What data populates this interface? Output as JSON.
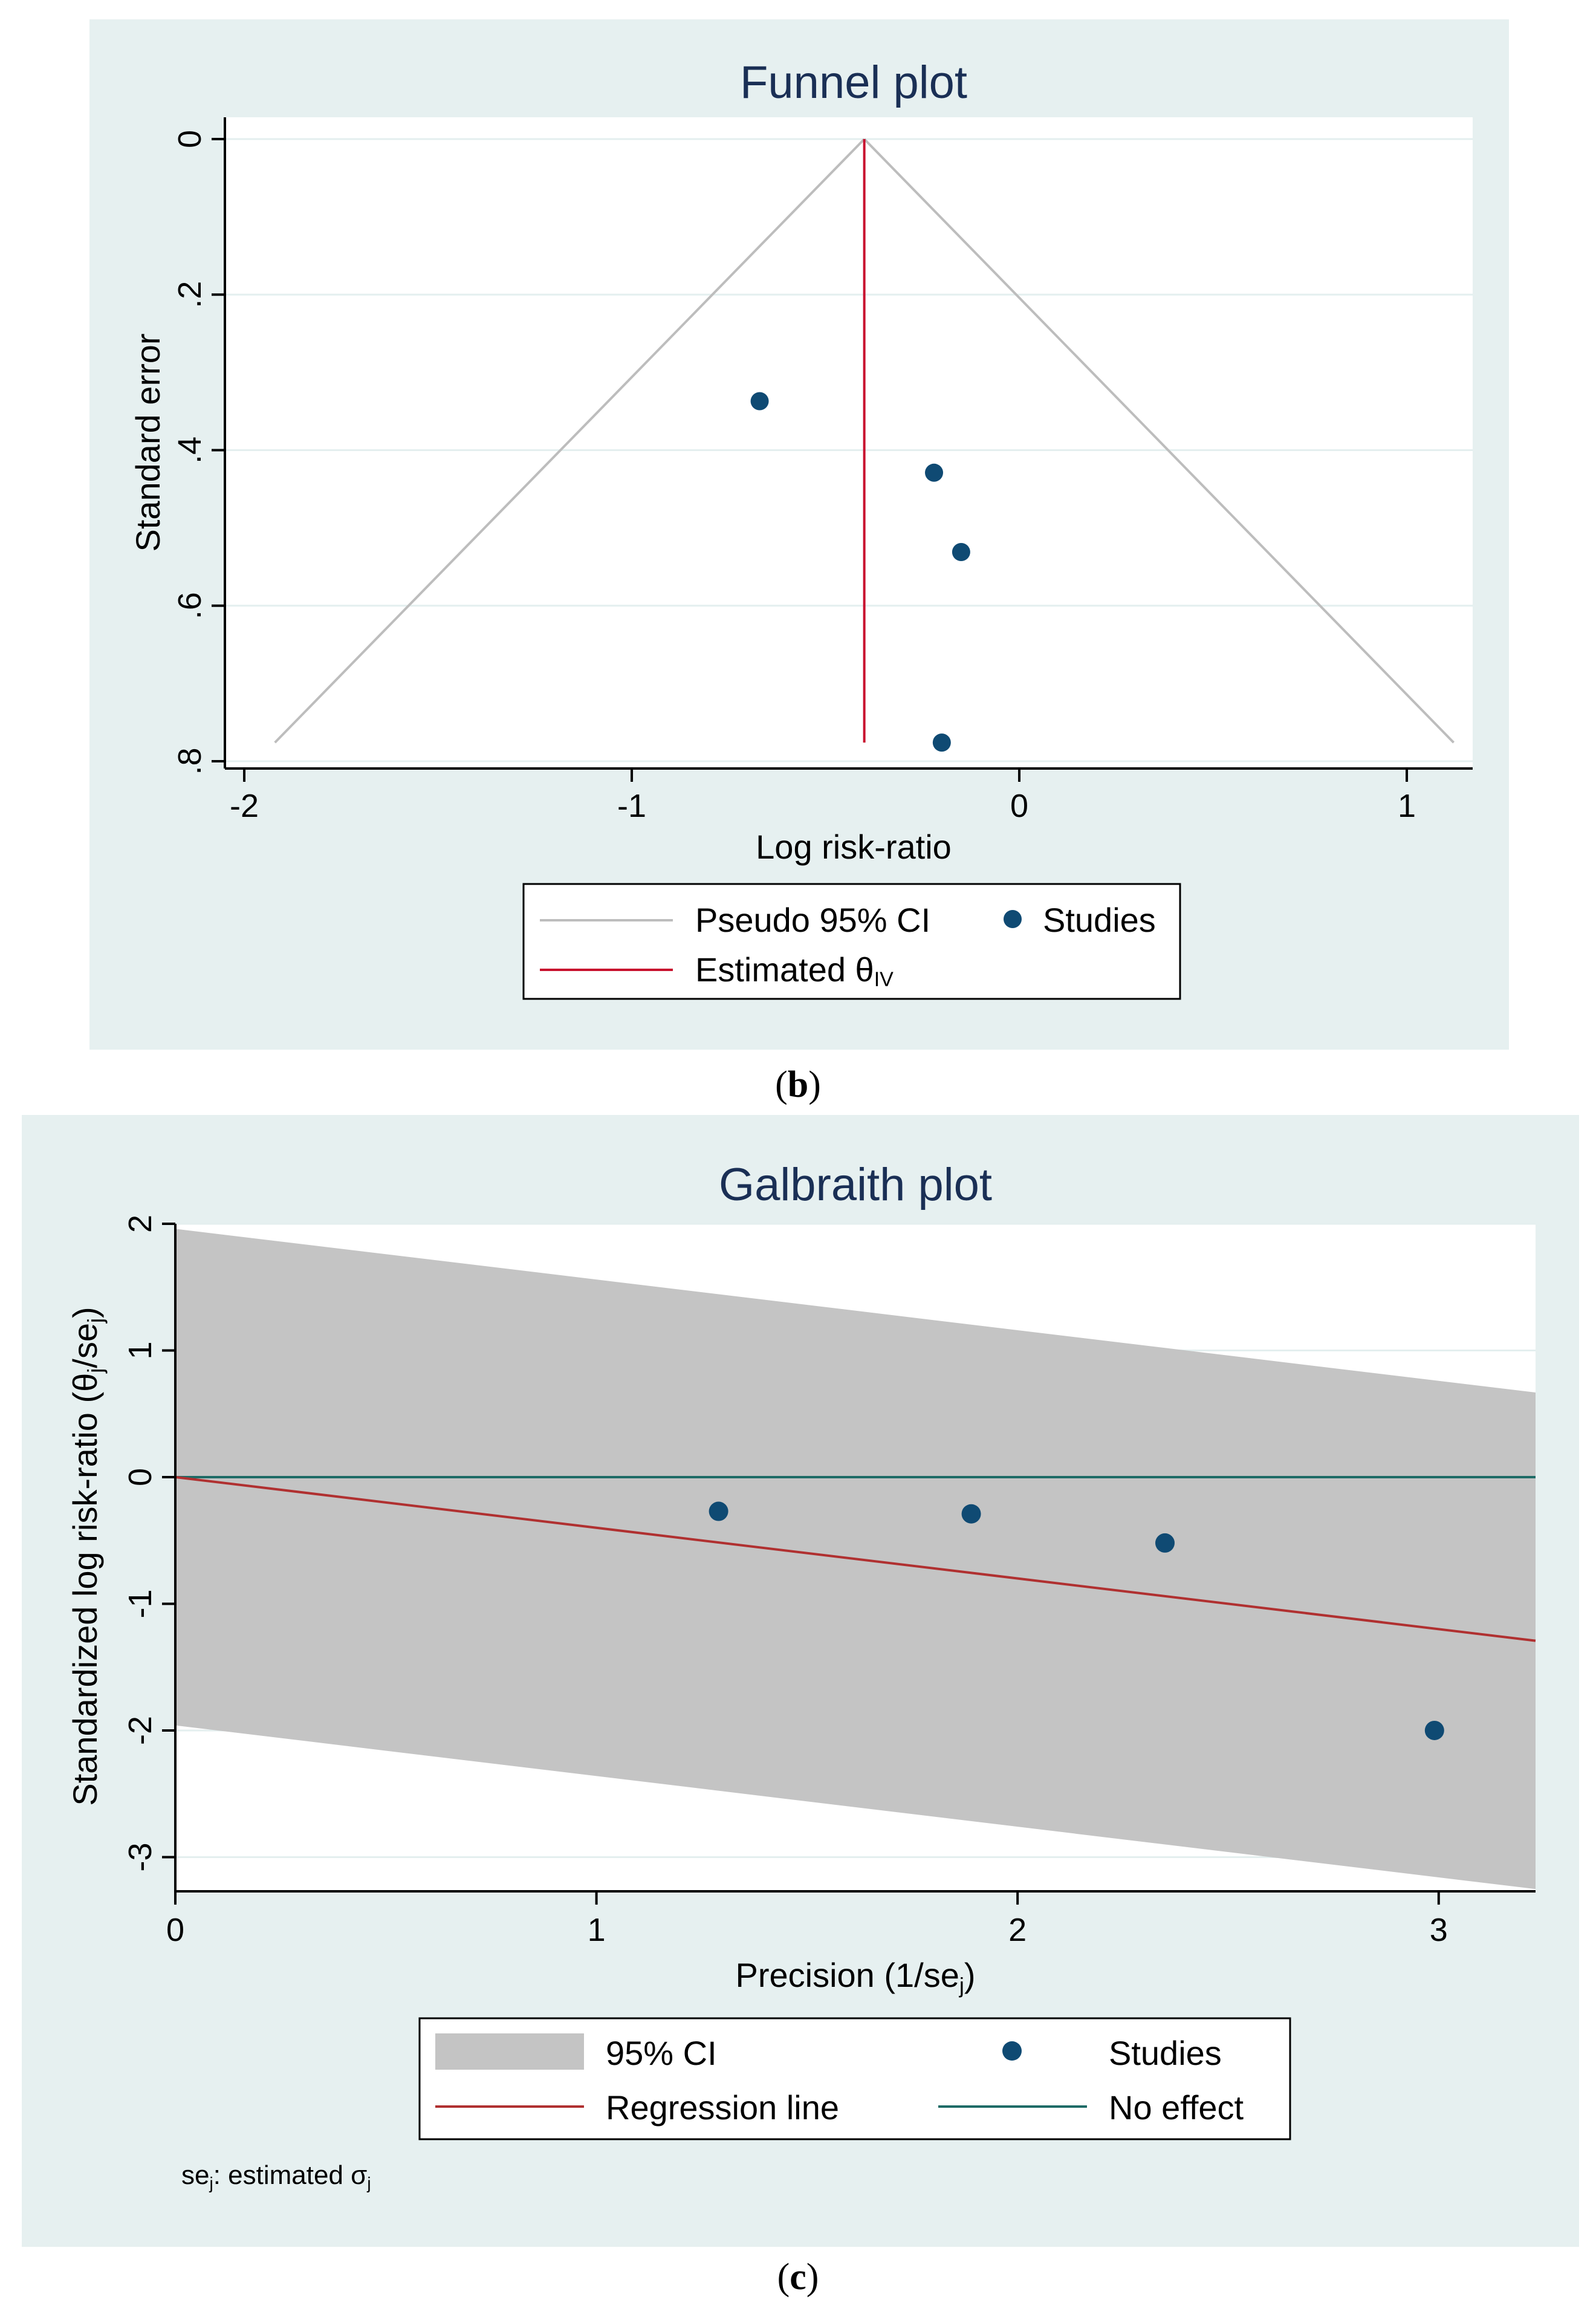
{
  "colors": {
    "panel_bg": "#e6f0f0",
    "plot_bg": "#ffffff",
    "title": "#1a2f55",
    "grid": "#e4efef",
    "point": "#0f4a73",
    "pseudo_ci": "#bdbdbd",
    "estimate": "#c8102e",
    "ci_band": "#c4c4c4",
    "regression": "#b03030",
    "no_effect": "#1e6b66",
    "axis": "#000000"
  },
  "labels": {
    "b": "(b)",
    "b_letter": "b",
    "c": "(c)",
    "c_letter": "c",
    "paren_open": "(",
    "paren_close": ")"
  },
  "chart_data": [
    {
      "id": "funnel",
      "type": "scatter",
      "title": "Funnel plot",
      "xlabel": "Log risk-ratio",
      "ylabel": "Standard error",
      "xlim": [
        -2.05,
        1.17
      ],
      "ylim": [
        0,
        0.8
      ],
      "y_reversed": true,
      "grid": true,
      "xticks": [
        -2,
        -1,
        0,
        1
      ],
      "xtick_labels": [
        "-2",
        "-1",
        "0",
        "1"
      ],
      "yticks": [
        0,
        0.2,
        0.4,
        0.6,
        0.8
      ],
      "ytick_labels": [
        "0",
        ".2",
        ".4",
        ".6",
        ".8"
      ],
      "points": [
        {
          "x": -0.67,
          "y": 0.337
        },
        {
          "x": -0.22,
          "y": 0.429
        },
        {
          "x": -0.15,
          "y": 0.531
        },
        {
          "x": -0.2,
          "y": 0.776
        }
      ],
      "estimate": -0.4,
      "se_max": 0.776,
      "legend": {
        "position": "bottom",
        "pseudo_ci": "Pseudo 95% CI",
        "studies": "Studies",
        "estimated_prefix": "Estimated θ",
        "estimated_sub": "IV"
      }
    },
    {
      "id": "galbraith",
      "type": "scatter",
      "title": "Galbraith plot",
      "xlabel_prefix": "Precision (1/se",
      "xlabel_sub": "j",
      "xlabel_suffix": ")",
      "ylabel_prefix": "Standardized log risk-ratio (θ",
      "ylabel_sub1": "j",
      "ylabel_mid": "/se",
      "ylabel_sub2": "j",
      "ylabel_suffix": ")",
      "xlim": [
        0,
        3.23
      ],
      "ylim": [
        -3.27,
        2.0
      ],
      "grid": true,
      "xticks": [
        0,
        1,
        2,
        3
      ],
      "xtick_labels": [
        "0",
        "1",
        "2",
        "3"
      ],
      "yticks": [
        -3,
        -2,
        -1,
        0,
        1,
        2
      ],
      "ytick_labels": [
        "-3",
        "-2",
        "-1",
        "0",
        "1",
        "2"
      ],
      "points": [
        {
          "x": 1.29,
          "y": -0.27
        },
        {
          "x": 1.89,
          "y": -0.29
        },
        {
          "x": 2.35,
          "y": -0.52
        },
        {
          "x": 2.99,
          "y": -2.0
        }
      ],
      "slope": -0.4,
      "ci_halfwidth": 1.96,
      "legend": {
        "position": "bottom",
        "ci": "95% CI",
        "studies": "Studies",
        "regression": "Regression line",
        "no_effect": "No effect"
      },
      "note_prefix": "se",
      "note_sub": "j",
      "note_mid": ": estimated σ",
      "note_sub2": "j"
    }
  ]
}
